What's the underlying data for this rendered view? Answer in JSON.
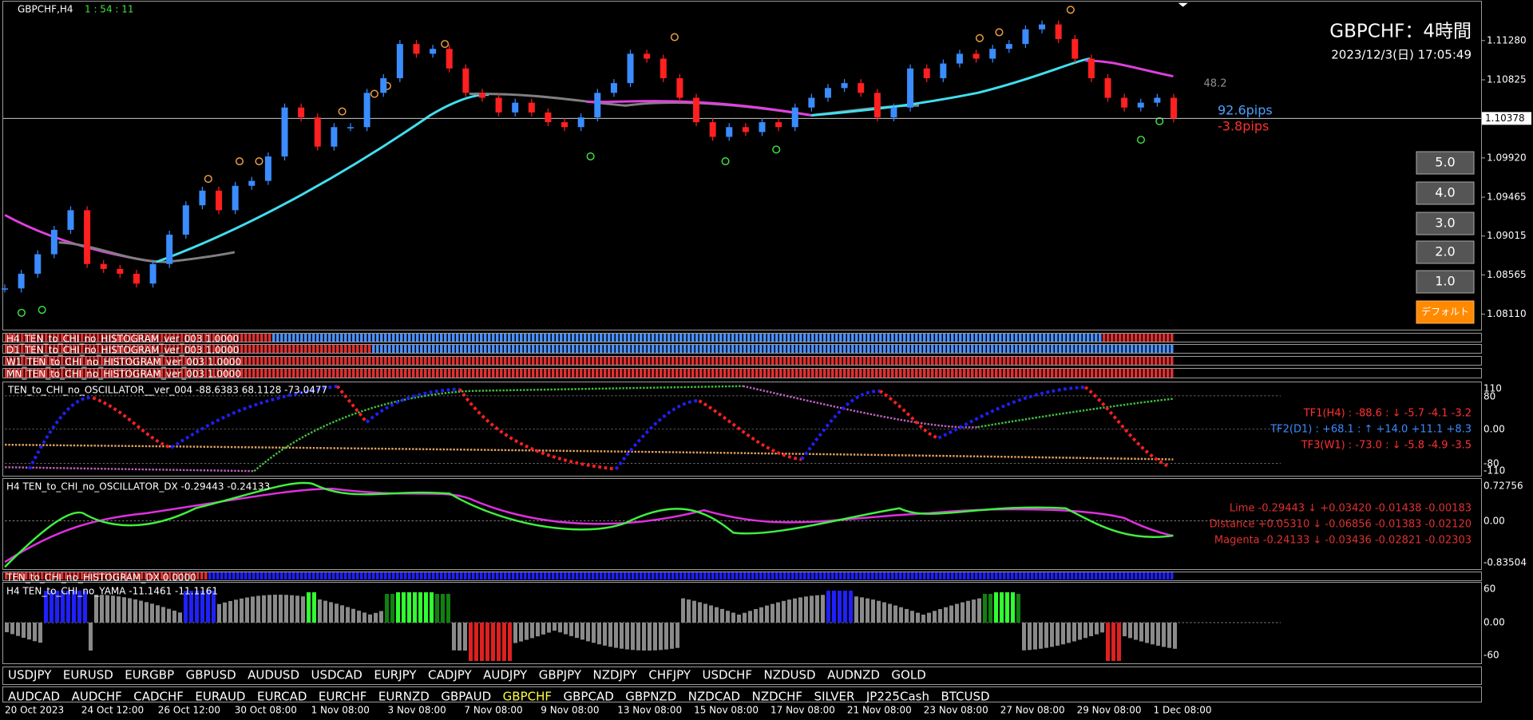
{
  "header": {
    "symbol": "GBPCHF,H4",
    "timer": "1 : 54 : 11",
    "title": "GBPCHF：4時間",
    "datetime": "2023/12/3(日) 17:05:49"
  },
  "price": {
    "ylim": [
      1.0793,
      1.1175
    ],
    "ticks": [
      {
        "value": 1.1128,
        "label": "1.11280"
      },
      {
        "value": 1.10825,
        "label": "1.10825"
      },
      {
        "value": 1.0992,
        "label": "1.09920"
      },
      {
        "value": 1.09465,
        "label": "1.09465"
      },
      {
        "value": 1.09015,
        "label": "1.09015"
      },
      {
        "value": 1.08565,
        "label": "1.08565"
      },
      {
        "value": 1.0811,
        "label": "1.08110"
      }
    ],
    "current": {
      "value": 1.10378,
      "label": "1.10378"
    },
    "closes": [
      1.08408,
      1.08578,
      1.08804,
      1.09087,
      1.09314,
      1.08691,
      1.08634,
      1.08578,
      1.08464,
      1.08691,
      1.09031,
      1.09371,
      1.09541,
      1.09314,
      1.09597,
      1.09654,
      1.09937,
      1.10504,
      1.1039,
      1.10051,
      1.10277,
      1.10277,
      1.10674,
      1.10844,
      1.1124,
      1.11127,
      1.11184,
      1.10957,
      1.10674,
      1.10617,
      1.10447,
      1.1056,
      1.10447,
      1.10334,
      1.10277,
      1.1039,
      1.10674,
      1.10787,
      1.11127,
      1.1107,
      1.10844,
      1.10617,
      1.10334,
      1.10164,
      1.10277,
      1.1022,
      1.10334,
      1.10277,
      1.10504,
      1.10617,
      1.1073,
      1.10787,
      1.10674,
      1.1039,
      1.10504,
      1.10957,
      1.10844,
      1.11014,
      1.11127,
      1.1107,
      1.11184,
      1.1124,
      1.1141,
      1.11467,
      1.11297,
      1.1107,
      1.10844,
      1.10617,
      1.10504,
      1.1056,
      1.10617,
      1.10378
    ]
  },
  "overlay": {
    "level": "48.2",
    "pips_up": "92.6pips",
    "pips_down": "-3.8pips"
  },
  "buttons": [
    "5.0",
    "4.0",
    "3.0",
    "2.0",
    "1.0",
    "デフォルト"
  ],
  "histogram_labels": [
    "H4_TEN_to_CHI_no_HISTOGRAM_ver_003 1.0000",
    "D1_TEN_to_CHI_no_HISTOGRAM_ver_003 1.0000",
    "W1_TEN_to_CHI_no_HISTOGRAM_ver_003 1.0000",
    "MN_TEN_to_CHI_no_HISTOGRAM_ver_003 1.0000"
  ],
  "oscillator": {
    "label": "TEN_to_CHI_no_OSCILLATOR__ver_004 -88.6383 68.1128 -73.0477",
    "axis": [
      "110",
      "80",
      "0.00",
      "-80",
      "-110"
    ],
    "readouts": [
      "TF1(H4) : -88.6 : ↓ -5.7 -4.1 -3.2",
      "TF2(D1) : +68.1 : ↑ +14.0 +11.1 +8.3",
      "TF3(W1) : -73.0 : ↓ -5.8 -4.9 -3.5"
    ]
  },
  "dx": {
    "label": "H4 TEN_to_CHI_no_OSCILLATOR_DX -0.29443 -0.24133",
    "axis": [
      "0.72756",
      "0.00",
      "-0.83504"
    ],
    "readouts": [
      "Lime -0.29443 ↓ +0.03420 -0.01438 -0.00183",
      "Distance +0.05310 ↓ -0.06856 -0.01383 -0.02120",
      "Magenta -0.24133 ↓ -0.03436 -0.02821 -0.02303"
    ]
  },
  "dx_histogram_label": "TEN_to_CHI_no_HISTOGRAM_DX 0.0000",
  "yama": {
    "label": "H4 TEN_to_CHI_no_YAMA -11.1461 -11.1161",
    "axis": [
      "60",
      "0.00",
      "-60"
    ]
  },
  "symbols": [
    [
      "USDJPY",
      "EURUSD",
      "EURGBP",
      "GBPUSD",
      "AUDUSD",
      "USDCAD",
      "EURJPY",
      "CADJPY",
      "AUDJPY",
      "GBPJPY",
      "NZDJPY",
      "CHFJPY",
      "USDCHF",
      "NZDUSD",
      "AUDNZD",
      "GOLD"
    ],
    [
      "AUDCAD",
      "AUDCHF",
      "CADCHF",
      "EURAUD",
      "EURCAD",
      "EURCHF",
      "EURNZD",
      "GBPAUD",
      "GBPCHF",
      "GBPCAD",
      "GBPNZD",
      "NZDCAD",
      "NZDCHF",
      "SILVER",
      "JP225Cash",
      "BTCUSD"
    ]
  ],
  "dates": [
    "20 Oct 2023",
    "24 Oct 12:00",
    "26 Oct 12:00",
    "30 Oct 08:00",
    "1 Nov 08:00",
    "3 Nov 08:00",
    "7 Nov 08:00",
    "9 Nov 08:00",
    "13 Nov 08:00",
    "15 Nov 08:00",
    "17 Nov 08:00",
    "21 Nov 08:00",
    "23 Nov 08:00",
    "27 Nov 08:00",
    "29 Nov 08:00",
    "1 Dec 08:00"
  ]
}
